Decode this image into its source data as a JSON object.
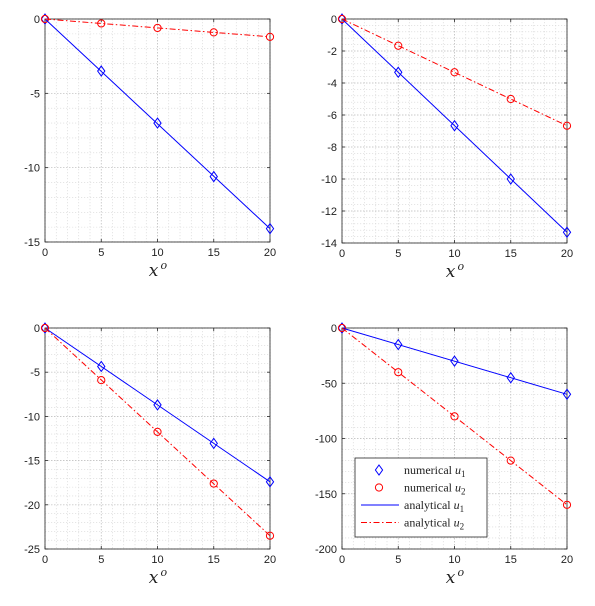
{
  "chart_data": [
    {
      "type": "line",
      "xlabel": "x",
      "xlabel_superscript": "o",
      "xlim": [
        0,
        20
      ],
      "ylim": [
        -15,
        0
      ],
      "xticks": [
        0,
        5,
        10,
        15,
        20
      ],
      "yticks": [
        0,
        -5,
        -10,
        -15
      ],
      "grid": true,
      "series": [
        {
          "name": "numerical u1",
          "marker": "diamond",
          "color": "#0000ff",
          "x": [
            0,
            5,
            10,
            15,
            20
          ],
          "y": [
            0,
            -3.5,
            -7.0,
            -10.6,
            -14.1
          ]
        },
        {
          "name": "numerical u2",
          "marker": "circle",
          "color": "#ff0000",
          "x": [
            0,
            5,
            10,
            15,
            20
          ],
          "y": [
            0,
            -0.3,
            -0.6,
            -0.9,
            -1.2
          ]
        },
        {
          "name": "analytical u1",
          "style": "solid",
          "color": "#0000ff",
          "x": [
            0,
            20
          ],
          "y": [
            0,
            -14.1
          ]
        },
        {
          "name": "analytical u2",
          "style": "dashdot",
          "color": "#ff0000",
          "x": [
            0,
            20
          ],
          "y": [
            0,
            -1.2
          ]
        }
      ]
    },
    {
      "type": "line",
      "xlabel": "x",
      "xlabel_superscript": "o",
      "xlim": [
        0,
        20
      ],
      "ylim": [
        -14,
        0
      ],
      "xticks": [
        0,
        5,
        10,
        15,
        20
      ],
      "yticks": [
        0,
        -2,
        -4,
        -6,
        -8,
        -10,
        -12,
        -14
      ],
      "grid": true,
      "series": [
        {
          "name": "numerical u1",
          "marker": "diamond",
          "color": "#0000ff",
          "x": [
            0,
            5,
            10,
            15,
            20
          ],
          "y": [
            0,
            -3.33,
            -6.67,
            -10.0,
            -13.33
          ]
        },
        {
          "name": "numerical u2",
          "marker": "circle",
          "color": "#ff0000",
          "x": [
            0,
            5,
            10,
            15,
            20
          ],
          "y": [
            0,
            -1.67,
            -3.33,
            -5.0,
            -6.67
          ]
        },
        {
          "name": "analytical u1",
          "style": "solid",
          "color": "#0000ff",
          "x": [
            0,
            20
          ],
          "y": [
            0,
            -13.33
          ]
        },
        {
          "name": "analytical u2",
          "style": "dashdot",
          "color": "#ff0000",
          "x": [
            0,
            20
          ],
          "y": [
            0,
            -6.67
          ]
        }
      ]
    },
    {
      "type": "line",
      "xlabel": "x",
      "xlabel_superscript": "o",
      "xlim": [
        0,
        20
      ],
      "ylim": [
        -25,
        0
      ],
      "xticks": [
        0,
        5,
        10,
        15,
        20
      ],
      "yticks": [
        0,
        -5,
        -10,
        -15,
        -20,
        -25
      ],
      "grid": true,
      "series": [
        {
          "name": "numerical u1",
          "marker": "diamond",
          "color": "#0000ff",
          "x": [
            0,
            5,
            10,
            15,
            20
          ],
          "y": [
            0,
            -4.35,
            -8.7,
            -13.05,
            -17.4
          ]
        },
        {
          "name": "numerical u2",
          "marker": "circle",
          "color": "#ff0000",
          "x": [
            0,
            5,
            10,
            15,
            20
          ],
          "y": [
            0,
            -5.9,
            -11.75,
            -17.6,
            -23.5
          ]
        },
        {
          "name": "analytical u1",
          "style": "solid",
          "color": "#0000ff",
          "x": [
            0,
            20
          ],
          "y": [
            0,
            -17.4
          ]
        },
        {
          "name": "analytical u2",
          "style": "dashdot",
          "color": "#ff0000",
          "x": [
            0,
            20
          ],
          "y": [
            0,
            -23.5
          ]
        }
      ]
    },
    {
      "type": "line",
      "xlabel": "x",
      "xlabel_superscript": "o",
      "xlim": [
        0,
        20
      ],
      "ylim": [
        -200,
        0
      ],
      "xticks": [
        0,
        5,
        10,
        15,
        20
      ],
      "yticks": [
        0,
        -50,
        -100,
        -150,
        -200
      ],
      "grid": true,
      "legend": "bottom-left",
      "legend_entries": [
        {
          "marker": "diamond",
          "color": "#0000ff",
          "text": "numerical",
          "var": "u",
          "sub": "1"
        },
        {
          "marker": "circle",
          "color": "#ff0000",
          "text": "numerical",
          "var": "u",
          "sub": "2"
        },
        {
          "line": "solid",
          "color": "#0000ff",
          "text": "analytical",
          "var": "u",
          "sub": "1"
        },
        {
          "line": "dashdot",
          "color": "#ff0000",
          "text": "analytical",
          "var": "u",
          "sub": "2"
        }
      ],
      "series": [
        {
          "name": "numerical u1",
          "marker": "diamond",
          "color": "#0000ff",
          "x": [
            0,
            5,
            10,
            15,
            20
          ],
          "y": [
            0,
            -15,
            -30,
            -45,
            -60
          ]
        },
        {
          "name": "numerical u2",
          "marker": "circle",
          "color": "#ff0000",
          "x": [
            0,
            5,
            10,
            15,
            20
          ],
          "y": [
            0,
            -40,
            -80,
            -120,
            -160
          ]
        },
        {
          "name": "analytical u1",
          "style": "solid",
          "color": "#0000ff",
          "x": [
            0,
            20
          ],
          "y": [
            0,
            -60
          ]
        },
        {
          "name": "analytical u2",
          "style": "dashdot",
          "color": "#ff0000",
          "x": [
            0,
            20
          ],
          "y": [
            0,
            -160
          ]
        }
      ]
    }
  ]
}
